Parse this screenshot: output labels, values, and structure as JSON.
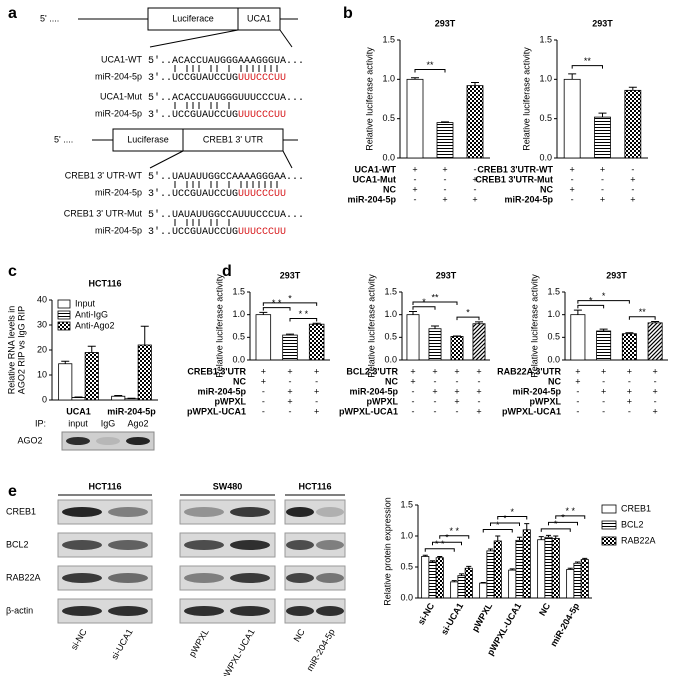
{
  "panel_labels": [
    "a",
    "b",
    "c",
    "d",
    "e"
  ],
  "panel_a": {
    "construct1": {
      "prefix": "5' ....",
      "luc": "Luciferace",
      "insert": "UCA1"
    },
    "rows1": [
      {
        "label": "UCA1-WT",
        "seq": "5'..ACACCUAUGGGAAAGGGUA..."
      },
      {
        "label": "miR-204-5p",
        "seq": "3'..UCCGUAUCCUG",
        "seq_red": "UUUCCCUU"
      },
      {
        "label": "UCA1-Mut",
        "seq": "5'..ACACCUAUGGGUUUCCCUA..."
      },
      {
        "label": "miR-204-5p",
        "seq": "3'..UCCGUAUCCUG",
        "seq_red": "UUUCCCUU"
      }
    ],
    "construct2": {
      "prefix": "5' ....",
      "luc": "Luciferase",
      "insert": "CREB1 3' UTR"
    },
    "rows2": [
      {
        "label": "CREB1 3' UTR-WT",
        "seq": "5'..UAUAUUGGCCAAAAGGGAA..."
      },
      {
        "label": "miR-204-5p",
        "seq": "3'..UCCGUAUCCUG",
        "seq_red": "UUUCCCUU"
      },
      {
        "label": "CREB1 3' UTR-Mut",
        "seq": "5'..UAUAUUGGCCAUUUCCCUA..."
      },
      {
        "label": "miR-204-5p",
        "seq": "3'..UCCGUAUCCUG",
        "seq_red": "UUUCCCUU"
      }
    ]
  },
  "chart_data": [
    {
      "type": "bar",
      "title": "293T",
      "ylabel": "Relative luciferase activity",
      "ylim": [
        0,
        1.5
      ],
      "yticks": [
        {
          "value": 0,
          "label": "0.0"
        },
        0.5,
        {
          "value": 1,
          "label": "1.0"
        },
        {
          "value": 1.5,
          "label": "1.5"
        }
      ],
      "values": [
        1.0,
        0.45,
        0.92
      ],
      "errors": [
        0.02,
        0.01,
        0.04
      ],
      "patterns": [
        "none",
        "hlines",
        "checker"
      ],
      "condition_rows": [
        {
          "name": "UCA1-WT",
          "marks": [
            "+",
            "+",
            "-"
          ]
        },
        {
          "name": "UCA1-Mut",
          "marks": [
            "-",
            "-",
            "+"
          ]
        },
        {
          "name": "NC",
          "marks": [
            "+",
            "-",
            "-"
          ]
        },
        {
          "name": "miR-204-5p",
          "marks": [
            "-",
            "+",
            "+"
          ]
        }
      ],
      "significance": [
        {
          "label": "**",
          "between": [
            0,
            1
          ]
        }
      ]
    },
    {
      "type": "bar",
      "title": "293T",
      "ylabel": "Relative luciferase activity",
      "ylim": [
        0,
        1.5
      ],
      "yticks": [
        {
          "value": 0,
          "label": "0.0"
        },
        0.5,
        {
          "value": 1,
          "label": "1.0"
        },
        {
          "value": 1.5,
          "label": "1.5"
        }
      ],
      "values": [
        1.0,
        0.52,
        0.86
      ],
      "errors": [
        0.07,
        0.05,
        0.04
      ],
      "patterns": [
        "none",
        "hlines",
        "checker"
      ],
      "condition_rows": [
        {
          "name": "CREB1 3'UTR-WT",
          "marks": [
            "+",
            "+",
            "-"
          ]
        },
        {
          "name": "CREB1 3'UTR-Mut",
          "marks": [
            "-",
            "-",
            "+"
          ]
        },
        {
          "name": "NC",
          "marks": [
            "+",
            "-",
            "-"
          ]
        },
        {
          "name": "miR-204-5p",
          "marks": [
            "-",
            "+",
            "+"
          ]
        }
      ],
      "significance": [
        {
          "label": "**",
          "between": [
            0,
            1
          ]
        }
      ]
    },
    {
      "type": "grouped_bar",
      "title": "HCT116",
      "ylabel": [
        "Relative RNA levels in",
        "AGO2 RIP vs IgG RIP"
      ],
      "ylim": [
        0,
        40
      ],
      "yticks": [
        0,
        10,
        20,
        30,
        40
      ],
      "legend": "upper-left",
      "categories": [
        "UCA1",
        "miR-204-5p"
      ],
      "series": [
        {
          "name": "Input",
          "pattern": "none",
          "values": [
            14.5,
            1.5
          ],
          "errors": [
            1,
            0.3
          ]
        },
        {
          "name": "Anti-IgG",
          "pattern": "hlines",
          "values": [
            1,
            0.5
          ],
          "errors": [
            0.2,
            0.2
          ]
        },
        {
          "name": "Anti-Ago2",
          "pattern": "checker",
          "values": [
            19,
            22
          ],
          "errors": [
            2.5,
            7.5
          ]
        }
      ]
    },
    {
      "type": "bar",
      "title": "293T",
      "ylabel": "Relative luciferase activity",
      "ylim": [
        0,
        1.5
      ],
      "yticks": [
        {
          "value": 0,
          "label": "0.0"
        },
        0.5,
        {
          "value": 1,
          "label": "1.0"
        },
        {
          "value": 1.5,
          "label": "1.5"
        }
      ],
      "values": [
        1.0,
        0.55,
        0.79
      ],
      "errors": [
        0.05,
        0.02,
        0.02
      ],
      "patterns": [
        "none",
        "hlines",
        "checker"
      ],
      "condition_rows": [
        {
          "name": "CREB1 3'UTR",
          "marks": [
            "+",
            "+",
            "+"
          ]
        },
        {
          "name": "NC",
          "marks": [
            "+",
            "-",
            "-"
          ]
        },
        {
          "name": "miR-204-5p",
          "marks": [
            "-",
            "+",
            "+"
          ]
        },
        {
          "name": "pWPXL",
          "marks": [
            "-",
            "+",
            "-"
          ]
        },
        {
          "name": "pWPXL-UCA1",
          "marks": [
            "-",
            "-",
            "+"
          ]
        }
      ],
      "significance": [
        {
          "label": "*",
          "between": [
            0,
            2
          ]
        },
        {
          "label": "* *",
          "between": [
            0,
            1
          ]
        },
        {
          "label": "* *",
          "between": [
            1,
            2
          ]
        }
      ]
    },
    {
      "type": "bar",
      "title": "293T",
      "ylabel": "Relative luciferase activity",
      "ylim": [
        0,
        1.5
      ],
      "yticks": [
        {
          "value": 0,
          "label": "0.0"
        },
        0.5,
        {
          "value": 1,
          "label": "1.0"
        },
        {
          "value": 1.5,
          "label": "1.5"
        }
      ],
      "values": [
        1.0,
        0.69,
        0.52,
        0.8
      ],
      "errors": [
        0.07,
        0.06,
        0.01,
        0.04
      ],
      "patterns": [
        "none",
        "hlines",
        "checker",
        "diag"
      ],
      "condition_rows": [
        {
          "name": "BCL2 3'UTR",
          "marks": [
            "+",
            "+",
            "+",
            "+"
          ]
        },
        {
          "name": "NC",
          "marks": [
            "+",
            "-",
            "-",
            "-"
          ]
        },
        {
          "name": "miR-204-5p",
          "marks": [
            "-",
            "+",
            "+",
            "+"
          ]
        },
        {
          "name": "pWPXL",
          "marks": [
            "-",
            "-",
            "+",
            "-"
          ]
        },
        {
          "name": "pWPXL-UCA1",
          "marks": [
            "-",
            "-",
            "-",
            "+"
          ]
        }
      ],
      "significance": [
        {
          "label": "*",
          "between": [
            0,
            1
          ]
        },
        {
          "label": "**",
          "between": [
            0,
            2
          ]
        },
        {
          "label": "*",
          "between": [
            2,
            3
          ]
        }
      ]
    },
    {
      "type": "bar",
      "title": "293T",
      "ylabel": "Relative luciferase activity",
      "ylim": [
        0,
        1.5
      ],
      "yticks": [
        {
          "value": 0,
          "label": "0.0"
        },
        0.5,
        {
          "value": 1,
          "label": "1.0"
        },
        {
          "value": 1.5,
          "label": "1.5"
        }
      ],
      "values": [
        1.0,
        0.64,
        0.58,
        0.82
      ],
      "errors": [
        0.1,
        0.04,
        0.02,
        0.03
      ],
      "patterns": [
        "none",
        "hlines",
        "checker",
        "diag"
      ],
      "condition_rows": [
        {
          "name": "RAB22A 3'UTR",
          "marks": [
            "+",
            "+",
            "+",
            "+"
          ]
        },
        {
          "name": "NC",
          "marks": [
            "+",
            "-",
            "-",
            "-"
          ]
        },
        {
          "name": "miR-204-5p",
          "marks": [
            "-",
            "+",
            "+",
            "+"
          ]
        },
        {
          "name": "pWPXL",
          "marks": [
            "-",
            "-",
            "+",
            "-"
          ]
        },
        {
          "name": "pWPXL-UCA1",
          "marks": [
            "-",
            "-",
            "-",
            "+"
          ]
        }
      ],
      "significance": [
        {
          "label": "*",
          "between": [
            0,
            1
          ]
        },
        {
          "label": "*",
          "between": [
            0,
            2
          ]
        },
        {
          "label": "**",
          "between": [
            2,
            3
          ]
        }
      ]
    },
    {
      "type": "grouped_bar",
      "ylabel": "Relative protein expression",
      "ylim": [
        0,
        1.5
      ],
      "yticks": [
        {
          "value": 0,
          "label": "0.0"
        },
        0.5,
        {
          "value": 1,
          "label": "1.0"
        },
        {
          "value": 1.5,
          "label": "1.5"
        }
      ],
      "legend": "right",
      "rotate_categories": true,
      "categories": [
        "si-NC",
        "si-UCA1",
        "pWPXL",
        "pWPXL-UCA1",
        "NC",
        "miR-204-5p"
      ],
      "series": [
        {
          "name": "CREB1",
          "pattern": "none",
          "values": [
            0.67,
            0.26,
            0.24,
            0.45,
            0.94,
            0.46
          ],
          "errors": [
            0.02,
            0.02,
            0.01,
            0.02,
            0.05,
            0.02
          ]
        },
        {
          "name": "BCL2",
          "pattern": "hlines",
          "values": [
            0.58,
            0.36,
            0.76,
            0.93,
            0.98,
            0.56
          ],
          "errors": [
            0.02,
            0.03,
            0.03,
            0.05,
            0.03,
            0.02
          ]
        },
        {
          "name": "RAB22A",
          "pattern": "checker",
          "values": [
            0.65,
            0.48,
            0.92,
            1.1,
            0.96,
            0.62
          ],
          "errors": [
            0.02,
            0.03,
            0.08,
            0.1,
            0.04,
            0.02
          ]
        }
      ],
      "significance": [
        {
          "label": "* *",
          "series": 0,
          "between": [
            0,
            1
          ]
        },
        {
          "label": "*",
          "series": 1,
          "between": [
            0,
            1
          ]
        },
        {
          "label": "* *",
          "series": 2,
          "between": [
            0,
            1
          ]
        },
        {
          "label": "*",
          "series": 0,
          "between": [
            2,
            3
          ]
        },
        {
          "label": "*",
          "series": 1,
          "between": [
            2,
            3
          ]
        },
        {
          "label": "*",
          "series": 2,
          "between": [
            2,
            3
          ]
        },
        {
          "label": "*",
          "series": 0,
          "between": [
            4,
            5
          ]
        },
        {
          "label": "*",
          "series": 1,
          "between": [
            4,
            5
          ]
        },
        {
          "label": "* *",
          "series": 2,
          "between": [
            4,
            5
          ]
        }
      ]
    }
  ],
  "panel_c_blot": {
    "ip_label": "IP:",
    "lanes": [
      "input",
      "IgG",
      "Ago2"
    ],
    "row": "AGO2"
  },
  "panel_e_blot": {
    "groups": [
      "HCT116",
      "SW480",
      "HCT116"
    ],
    "rows": [
      "CREB1",
      "BCL2",
      "RAB22A",
      "β-actin"
    ],
    "lanes": [
      "si-NC",
      "si-UCA1",
      "pWPXL",
      "pWPXL-UCA1",
      "NC",
      "miR-204-5p"
    ]
  }
}
